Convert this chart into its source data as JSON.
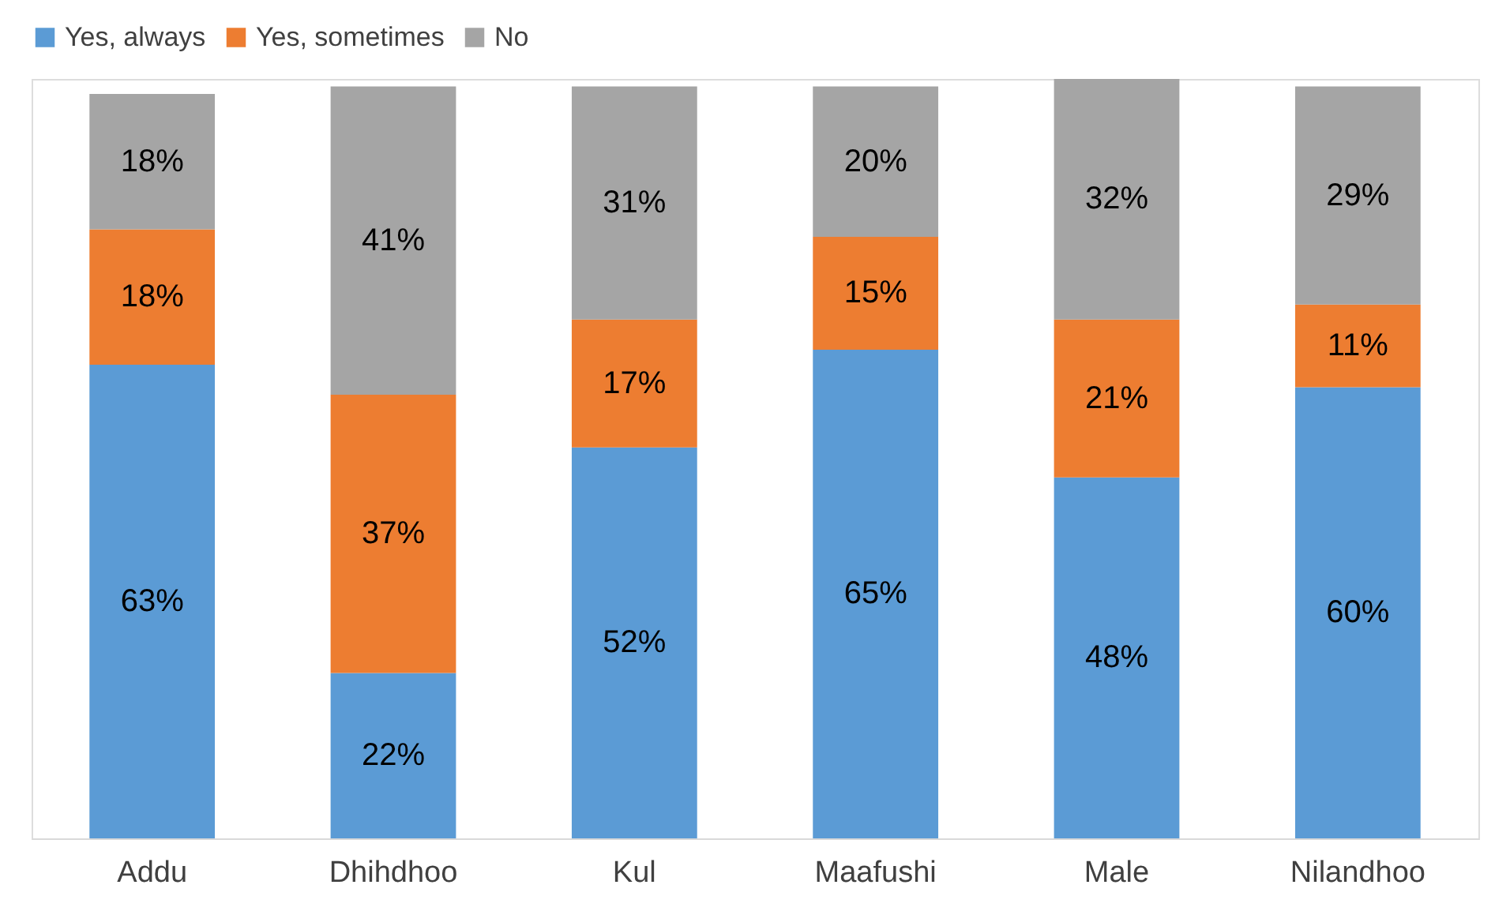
{
  "chart_data": {
    "type": "bar",
    "stacked": true,
    "legend": "top",
    "categories": [
      "Addu",
      "Dhihdhoo",
      "Kul",
      "Maafushi",
      "Male",
      "Nilandhoo"
    ],
    "series": [
      {
        "name": "Yes, always",
        "color": "#5b9bd5",
        "values": [
          63,
          22,
          52,
          65,
          48,
          60
        ],
        "value_labels": [
          "63%",
          "22%",
          "52%",
          "65%",
          "48%",
          "60%"
        ]
      },
      {
        "name": "Yes, sometimes",
        "color": "#ed7d31",
        "values": [
          18,
          37,
          17,
          15,
          21,
          11
        ],
        "value_labels": [
          "18%",
          "37%",
          "17%",
          "15%",
          "21%",
          "11%"
        ]
      },
      {
        "name": "No",
        "color": "#a5a5a5",
        "values": [
          18,
          41,
          31,
          20,
          32,
          29
        ],
        "value_labels": [
          "18%",
          "41%",
          "31%",
          "20%",
          "32%",
          "29%"
        ]
      }
    ]
  }
}
